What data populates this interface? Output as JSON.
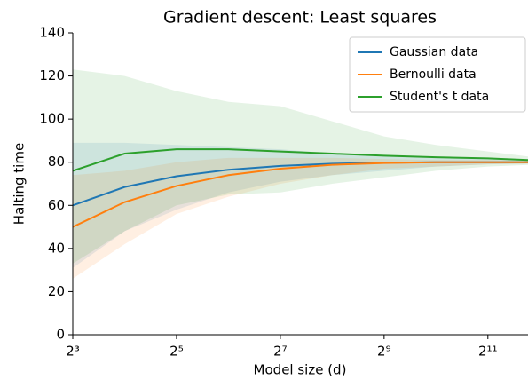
{
  "chart_data": {
    "type": "line",
    "title": "Gradient descent: Least squares",
    "xlabel": "Model size (d)",
    "ylabel": "Halting time",
    "x": [
      8,
      16,
      32,
      64,
      128,
      256,
      512,
      1024,
      2048,
      4096
    ],
    "xscale": "log2",
    "xlim": [
      8,
      3500
    ],
    "xticks": [
      {
        "value": 8,
        "label": "2³"
      },
      {
        "value": 32,
        "label": "2⁵"
      },
      {
        "value": 128,
        "label": "2⁷"
      },
      {
        "value": 512,
        "label": "2⁹"
      },
      {
        "value": 2048,
        "label": "2¹¹"
      }
    ],
    "ylim": [
      0,
      140
    ],
    "yticks": [
      0,
      20,
      40,
      60,
      80,
      100,
      120,
      140
    ],
    "legend": "upper right",
    "series": [
      {
        "name": "Gaussian data",
        "color": "#1f77b4",
        "values": [
          60,
          68.5,
          73.5,
          76.5,
          78.3,
          79.3,
          79.8,
          80,
          80,
          80
        ],
        "lower": [
          31,
          48,
          58,
          66,
          71,
          74,
          76,
          78,
          79,
          79.5
        ],
        "upper": [
          89,
          89,
          88,
          87,
          86,
          84,
          83,
          82,
          81.5,
          81
        ]
      },
      {
        "name": "Bernoulli data",
        "color": "#ff7f0e",
        "values": [
          50,
          61.5,
          69,
          74,
          77,
          78.8,
          79.6,
          80,
          80,
          80
        ],
        "lower": [
          26,
          42,
          56,
          64,
          70,
          74,
          77,
          78,
          79,
          79.5
        ],
        "upper": [
          74,
          76,
          80,
          82,
          82,
          82,
          81.5,
          81,
          81,
          80.5
        ]
      },
      {
        "name": "Student's t data",
        "color": "#2ca02c",
        "values": [
          76,
          84,
          86,
          86,
          85,
          84,
          83,
          82.3,
          81.8,
          80.8
        ],
        "lower": [
          33,
          48,
          60,
          65,
          66,
          70,
          73,
          76,
          78,
          79
        ],
        "upper": [
          123,
          120,
          113,
          108,
          106,
          99,
          92,
          88,
          85,
          82
        ]
      }
    ]
  }
}
